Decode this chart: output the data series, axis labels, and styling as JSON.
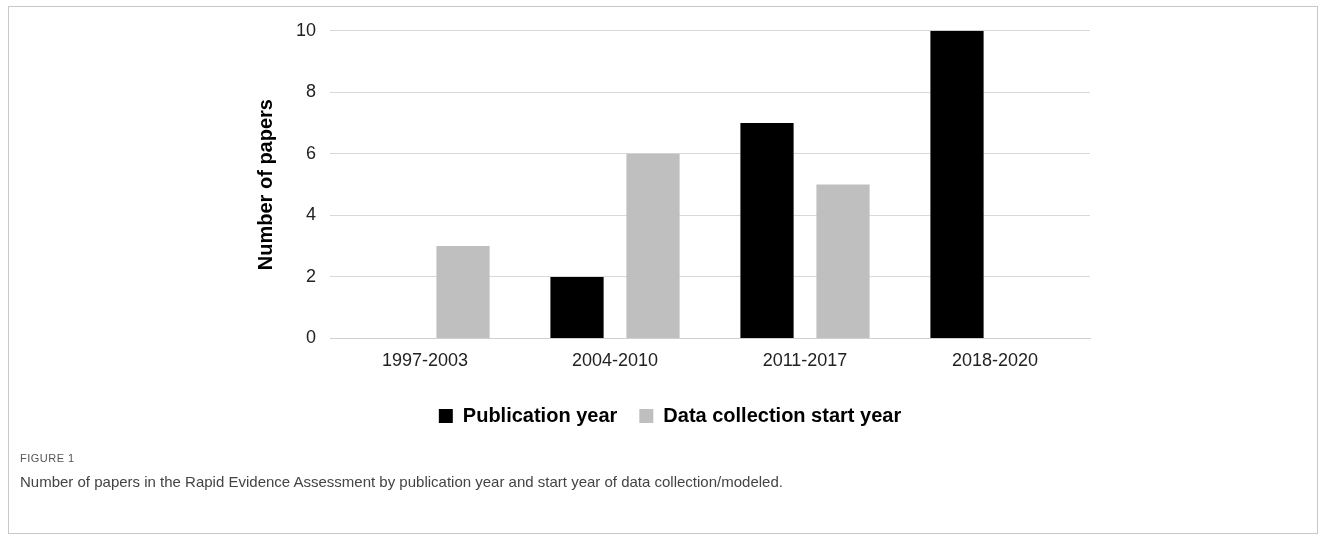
{
  "chart_data": {
    "type": "bar",
    "categories": [
      "1997-2003",
      "2004-2010",
      "2011-2017",
      "2018-2020"
    ],
    "series": [
      {
        "name": "Publication year",
        "color": "#000000",
        "values": [
          0,
          2,
          7,
          10
        ]
      },
      {
        "name": "Data collection start year",
        "color": "#bfbfbf",
        "values": [
          3,
          6,
          5,
          0
        ]
      }
    ],
    "ylabel": "Number of papers",
    "ylim": [
      0,
      10
    ],
    "yticks": [
      0,
      2,
      4,
      6,
      8,
      10
    ],
    "grid": "y",
    "legend": "bottom",
    "annotations": [
      "FIGURE 1",
      "Number of papers in the Rapid Evidence Assessment by publication year and start year of data collection/modeled."
    ]
  }
}
